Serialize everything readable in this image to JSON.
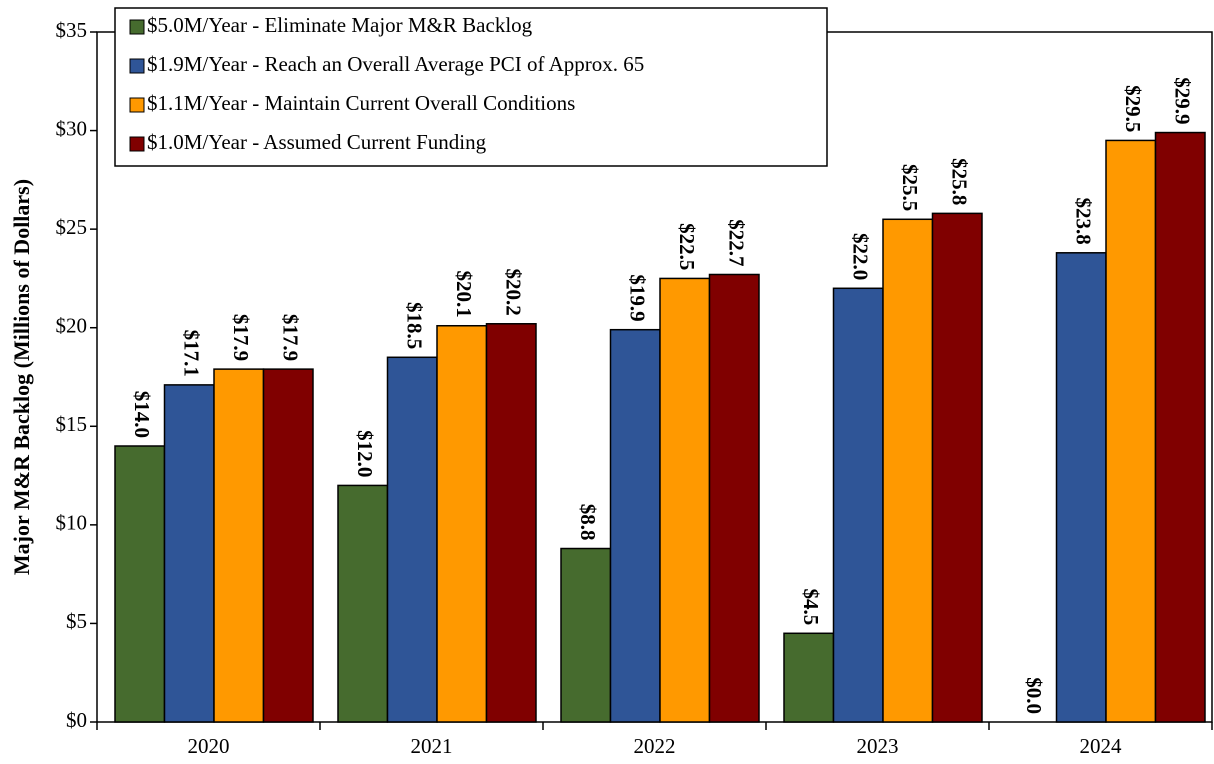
{
  "chart_data": {
    "type": "bar",
    "y_label": "Major M&R Backlog (Millions of Dollars)",
    "categories": [
      "2020",
      "2021",
      "2022",
      "2023",
      "2024"
    ],
    "series": [
      {
        "name": "$5.0M/Year - Eliminate Major M&R Backlog",
        "color": "#466b2e",
        "values": [
          14.0,
          12.0,
          8.8,
          4.5,
          0.0
        ],
        "value_labels": [
          "$14.0",
          "$12.0",
          "$8.8",
          "$4.5",
          "$0.0"
        ]
      },
      {
        "name": "$1.9M/Year - Reach an Overall Average PCI of Approx. 65",
        "color": "#2f5597",
        "values": [
          17.1,
          18.5,
          19.9,
          22.0,
          23.8
        ],
        "value_labels": [
          "$17.1",
          "$18.5",
          "$19.9",
          "$22.0",
          "$23.8"
        ]
      },
      {
        "name": "$1.1M/Year - Maintain Current Overall Conditions",
        "color": "#ff9900",
        "values": [
          17.9,
          20.1,
          22.5,
          25.5,
          29.5
        ],
        "value_labels": [
          "$17.9",
          "$20.1",
          "$22.5",
          "$25.5",
          "$29.5"
        ]
      },
      {
        "name": "$1.0M/Year - Assumed Current Funding",
        "color": "#800000",
        "values": [
          17.9,
          20.2,
          22.7,
          25.8,
          29.9
        ],
        "value_labels": [
          "$17.9",
          "$20.2",
          "$22.7",
          "$25.8",
          "$29.9"
        ]
      }
    ],
    "ylim": [
      0,
      35
    ],
    "yticks": [
      {
        "value": 0,
        "label": "$0"
      },
      {
        "value": 5,
        "label": "$5"
      },
      {
        "value": 10,
        "label": "$10"
      },
      {
        "value": 15,
        "label": "$15"
      },
      {
        "value": 20,
        "label": "$20"
      },
      {
        "value": 25,
        "label": "$25"
      },
      {
        "value": 30,
        "label": "$30"
      },
      {
        "value": 35,
        "label": "$35"
      }
    ],
    "legend": "upper left"
  }
}
